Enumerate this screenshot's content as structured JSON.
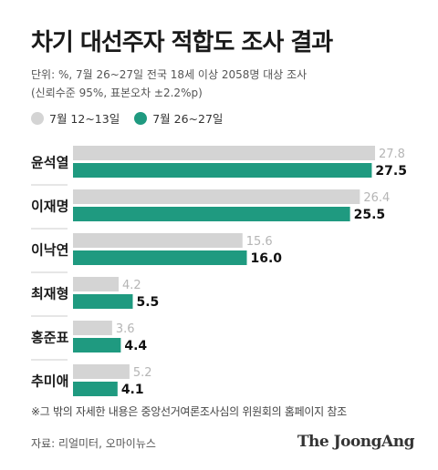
{
  "header": {
    "title": "차기 대선주자 적합도 조사 결과",
    "subtitle_line1": "단위: %, 7월 26~27일 전국 18세 이상 2058명 대상 조사",
    "subtitle_line2": "(신뢰수준 95%, 표본오차 ±2.2%p)"
  },
  "colors": {
    "prev": "#d4d4d4",
    "curr": "#1f9a80",
    "prev_label": "#b5b5b5",
    "curr_label": "#111111",
    "divider": "#cccccc"
  },
  "chart_data": {
    "type": "bar",
    "orientation": "horizontal",
    "categories": [
      "윤석열",
      "이재명",
      "이낙연",
      "최재형",
      "홍준표",
      "추미애"
    ],
    "series": [
      {
        "name": "7월 12~13일",
        "values": [
          27.8,
          26.4,
          15.6,
          4.2,
          3.6,
          5.2
        ],
        "labels": [
          "27.8",
          "26.4",
          "15.6",
          "4.2",
          "3.6",
          "5.2"
        ]
      },
      {
        "name": "7월 26~27일",
        "values": [
          27.5,
          25.5,
          16.0,
          5.5,
          4.4,
          4.1
        ],
        "labels": [
          "27.5",
          "25.5",
          "16.0",
          "5.5",
          "4.4",
          "4.1"
        ]
      }
    ],
    "xlim": [
      0,
      27.8
    ],
    "legend_position": "top-left"
  },
  "footnote": "※그 밖의 자세한 내용은 중앙선거여론조사심의 위원회의 홈페이지 참조",
  "source": "자료: 리얼미터, 오마이뉴스",
  "brand": "The JoongAng"
}
